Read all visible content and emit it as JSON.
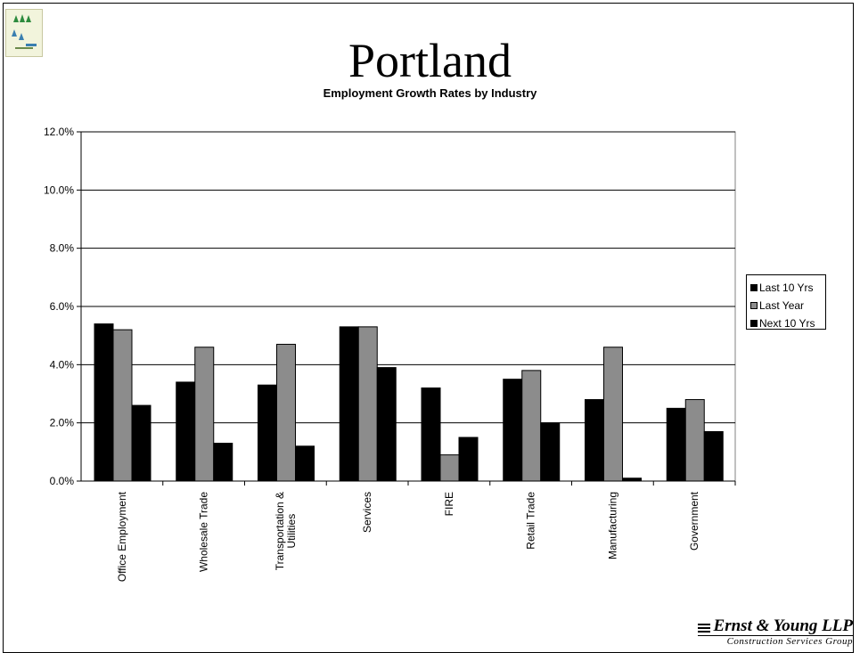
{
  "slide": {
    "title": "Portland",
    "subtitle": "Employment Growth Rates by Industry"
  },
  "brand": {
    "name": "Ernst & Young LLP",
    "group": "Construction Services Group"
  },
  "colors": {
    "last_10_yrs": "#000000",
    "last_year": "#8c8c8c",
    "next_10_yrs": "#000000",
    "gridline": "#000000"
  },
  "chart_data": {
    "type": "bar",
    "title": "Employment Growth Rates by Industry",
    "xlabel": "",
    "ylabel": "",
    "ylim": [
      0,
      12
    ],
    "y_ticks": [
      "0.0%",
      "2.0%",
      "4.0%",
      "6.0%",
      "8.0%",
      "10.0%",
      "12.0%"
    ],
    "grid": true,
    "legend_position": "right",
    "categories": [
      "Office Employment",
      "Wholesale Trade",
      "Transportation & Utilities",
      "Services",
      "FIRE",
      "Retail Trade",
      "Manufacturing",
      "Government"
    ],
    "series": [
      {
        "name": "Last 10 Yrs",
        "values": [
          5.4,
          3.4,
          3.3,
          5.3,
          3.2,
          3.5,
          2.8,
          2.5
        ]
      },
      {
        "name": "Last Year",
        "values": [
          5.2,
          4.6,
          4.7,
          5.3,
          0.9,
          3.8,
          4.6,
          2.8
        ]
      },
      {
        "name": "Next 10 Yrs",
        "values": [
          2.6,
          1.3,
          1.2,
          3.9,
          1.5,
          2.0,
          0.1,
          1.7
        ]
      }
    ]
  }
}
